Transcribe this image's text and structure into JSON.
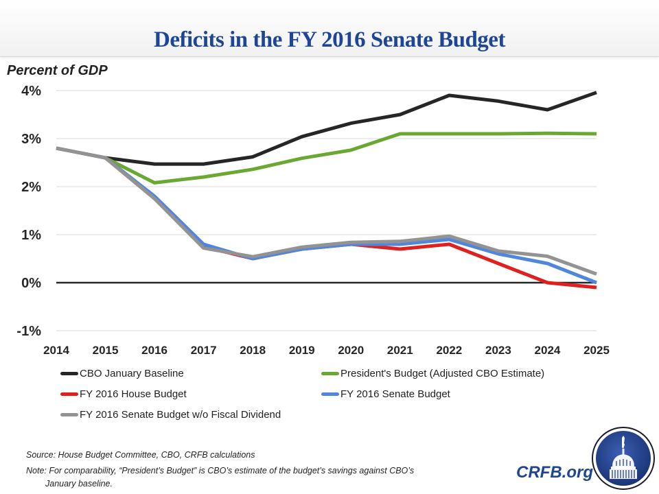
{
  "header": {
    "title": "Deficits in the FY 2016 Senate Budget"
  },
  "chart_data": {
    "type": "line",
    "title": "Deficits in the FY 2016 Senate Budget",
    "xlabel": "",
    "ylabel": "Percent of GDP",
    "x": [
      2014,
      2015,
      2016,
      2017,
      2018,
      2019,
      2020,
      2021,
      2022,
      2023,
      2024,
      2025
    ],
    "x_tick_labels": [
      "2014",
      "2015",
      "2016",
      "2017",
      "2018",
      "2019",
      "2020",
      "2021",
      "2022",
      "2023",
      "2024",
      "2025"
    ],
    "ylim": [
      -1,
      4
    ],
    "y_ticks": [
      -1,
      0,
      1,
      2,
      3,
      4
    ],
    "y_tick_labels": [
      "-1%",
      "0%",
      "1%",
      "2%",
      "3%",
      "4%"
    ],
    "grid": true,
    "legend_position": "bottom",
    "series": [
      {
        "name": "CBO January Baseline",
        "color": "#262626",
        "values": [
          2.8,
          2.6,
          2.47,
          2.47,
          2.62,
          3.04,
          3.32,
          3.5,
          3.9,
          3.78,
          3.6,
          3.96
        ]
      },
      {
        "name": "President's Budget (Adjusted CBO Estimate)",
        "color": "#6aa832",
        "values": [
          null,
          2.6,
          2.08,
          2.2,
          2.36,
          2.59,
          2.76,
          3.1,
          3.1,
          3.1,
          3.11,
          3.1
        ]
      },
      {
        "name": "FY 2016 House Budget",
        "color": "#e0201f",
        "values": [
          null,
          2.6,
          1.75,
          0.75,
          0.5,
          0.7,
          0.8,
          0.7,
          0.8,
          0.4,
          0.0,
          -0.1
        ]
      },
      {
        "name": "FY 2016 Senate Budget",
        "color": "#4f86de",
        "values": [
          null,
          2.6,
          1.8,
          0.8,
          0.5,
          0.7,
          0.8,
          0.8,
          0.9,
          0.6,
          0.4,
          0.0
        ]
      },
      {
        "name": "FY 2016 Senate Budget w/o Fiscal Dividend",
        "color": "#939393",
        "values": [
          2.8,
          2.6,
          1.75,
          0.72,
          0.54,
          0.74,
          0.84,
          0.86,
          0.97,
          0.66,
          0.55,
          0.18
        ]
      }
    ]
  },
  "legend": [
    {
      "label": "CBO January Baseline",
      "color": "#262626"
    },
    {
      "label": "President's Budget (Adjusted CBO Estimate)",
      "color": "#6aa832"
    },
    {
      "label": "FY 2016 House Budget",
      "color": "#e0201f"
    },
    {
      "label": "FY 2016 Senate Budget",
      "color": "#4f86de"
    },
    {
      "label": "FY 2016 Senate Budget w/o Fiscal Dividend",
      "color": "#939393"
    }
  ],
  "footer": {
    "source": "Source: House Budget Committee, CBO, CRFB calculations",
    "note_line1": "Note: For comparability, “President’s Budget” is CBO’s estimate of the budget’s savings against CBO’s",
    "note_line2": "January baseline.",
    "brand": "CRFB.org"
  },
  "logo": {
    "icon": "capitol-dome-icon"
  }
}
